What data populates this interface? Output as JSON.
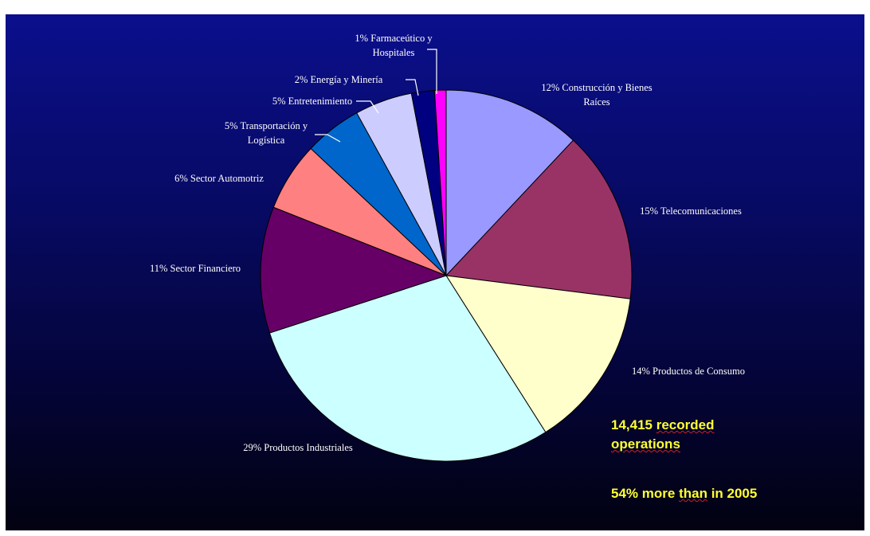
{
  "chart_data": {
    "type": "pie",
    "start_angle_deg": 0,
    "direction": "clockwise",
    "slices": [
      {
        "label_lines": [
          "12% Construcción y Bienes",
          "Raíces"
        ],
        "value": 12,
        "color": "#9999ff"
      },
      {
        "label_lines": [
          "15% Telecomunicaciones"
        ],
        "value": 15,
        "color": "#993366"
      },
      {
        "label_lines": [
          "14% Productos de Consumo"
        ],
        "value": 14,
        "color": "#ffffcc"
      },
      {
        "label_lines": [
          "29% Productos Industriales"
        ],
        "value": 29,
        "color": "#ccffff"
      },
      {
        "label_lines": [
          "11% Sector Financiero"
        ],
        "value": 11,
        "color": "#660066"
      },
      {
        "label_lines": [
          "6% Sector Automotriz"
        ],
        "value": 6,
        "color": "#ff8080"
      },
      {
        "label_lines": [
          "5% Transportación y",
          "Logística"
        ],
        "value": 5,
        "color": "#0066cc"
      },
      {
        "label_lines": [
          "5% Entretenimiento"
        ],
        "value": 5,
        "color": "#ccccff"
      },
      {
        "label_lines": [
          "2% Energía y Minería"
        ],
        "value": 2,
        "color": "#000080"
      },
      {
        "label_lines": [
          "1% Farmaceútico y",
          "Hospitales"
        ],
        "value": 1,
        "color": "#ff00ff"
      }
    ],
    "slice_border_color": "#000000"
  },
  "annotations": {
    "operations_count": "14,415",
    "operations_word1": "recorded",
    "operations_word2": "operations",
    "growth_pre": "54% more",
    "growth_mid": "than",
    "growth_post": "in 2005"
  },
  "colors": {
    "background_top": "#0b0f8c",
    "background_bottom": "#020211",
    "label_text": "#ffffff",
    "annotation_text": "#ffff33"
  }
}
